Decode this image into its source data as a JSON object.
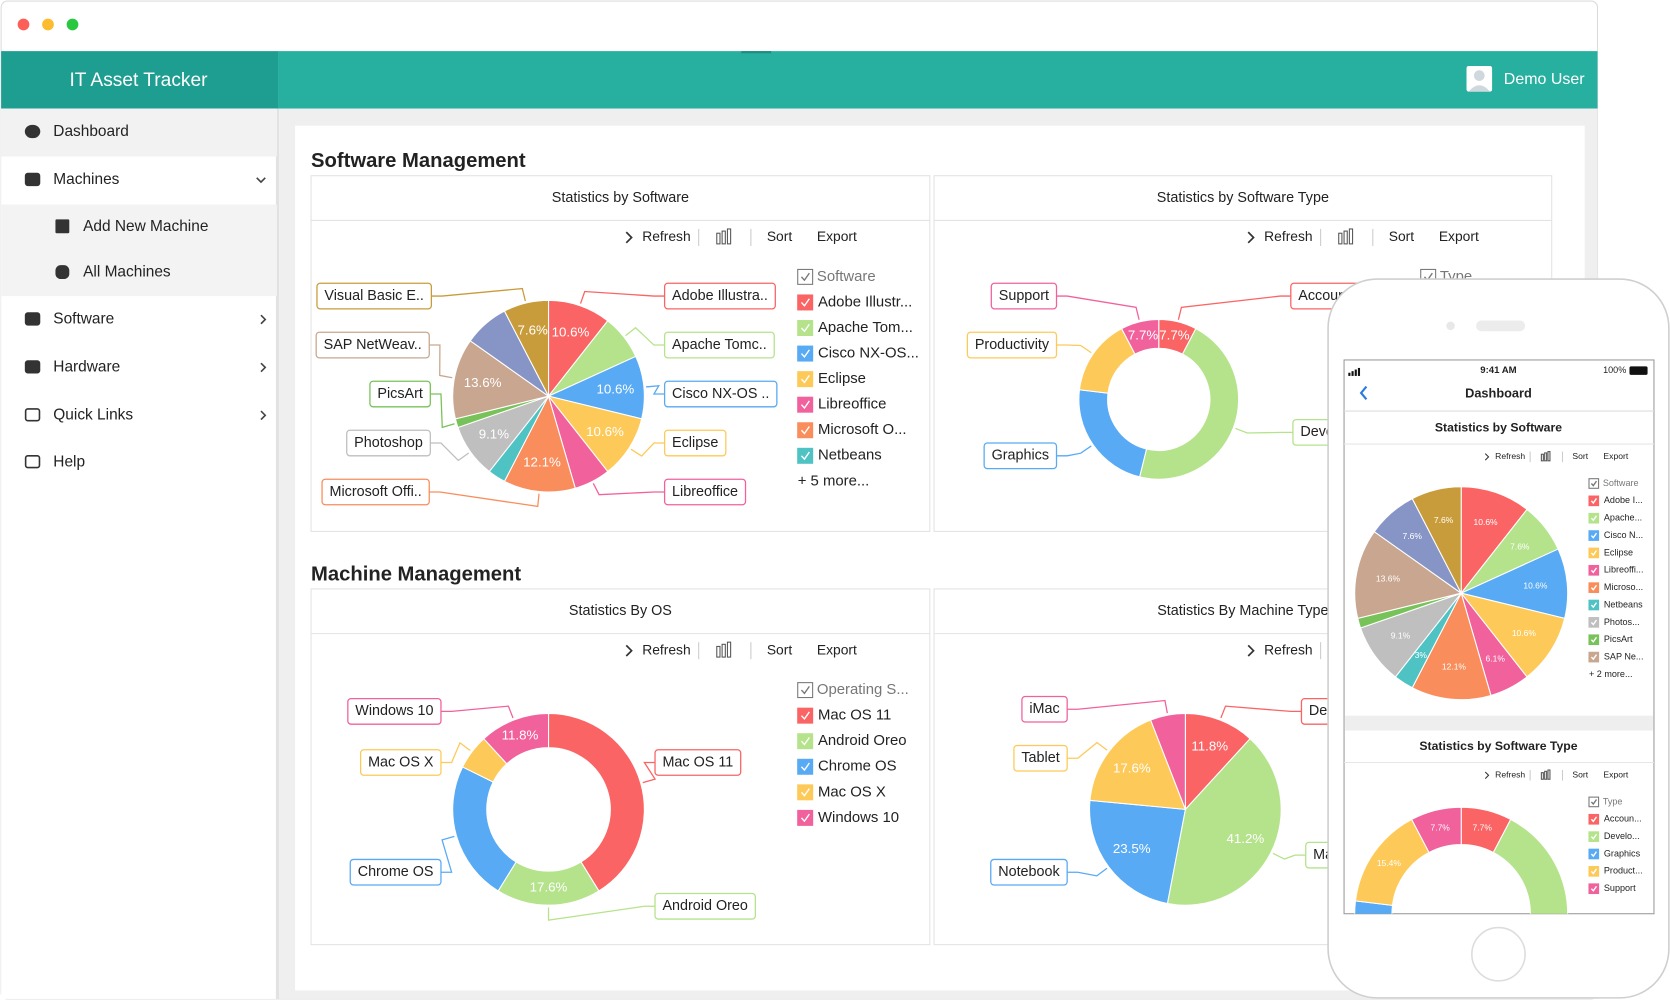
{
  "header": {
    "app_title": "IT Asset Tracker",
    "user": "Demo User"
  },
  "sidebar": {
    "items": [
      {
        "label": "Dashboard"
      },
      {
        "label": "Machines",
        "children": [
          "Add New Machine",
          "All Machines"
        ]
      },
      {
        "label": "Software"
      },
      {
        "label": "Hardware"
      },
      {
        "label": "Quick Links"
      },
      {
        "label": "Help"
      }
    ]
  },
  "toolbar": {
    "refresh": "Refresh",
    "sort": "Sort",
    "export": "Export"
  },
  "sections": [
    {
      "title": "Software Management",
      "charts": [
        {
          "title": "Statistics by Software",
          "type": "pie",
          "categories": [
            "Adobe Illustra..",
            "Apache Tomc..",
            "Cisco NX-OS ..",
            "Eclipse",
            "Libreoffice",
            "Microsoft Offi..",
            null,
            "Photoshop",
            "PicsArt",
            "SAP NetWeav..",
            null,
            "Visual Basic E.."
          ],
          "values": [
            10.6,
            7.6,
            10.6,
            10.6,
            6.1,
            12.1,
            3,
            9.1,
            1.5,
            13.6,
            7.6,
            7.6
          ],
          "value_labels": [
            "10.6%",
            null,
            "10.6%",
            "10.6%",
            null,
            "12.1%",
            null,
            "9.1%",
            null,
            "13.6%",
            null,
            "7.6%"
          ],
          "colors": [
            "#fa6464",
            "#b5e38b",
            "#58aaf4",
            "#fdca59",
            "#f1619c",
            "#f98d5b",
            "#4fc2c4",
            "#bfbfbf",
            "#78c25a",
            "#c9a68f",
            "#8795c6",
            "#c99c3b"
          ],
          "legend": {
            "title": "Software",
            "items": [
              "Adobe Illustr...",
              "Apache Tom...",
              "Cisco NX-OS...",
              "Eclipse",
              "Libreoffice",
              "Microsoft O...",
              "Netbeans"
            ],
            "more": "+ 5 more..."
          }
        },
        {
          "title": "Statistics by Software Type",
          "type": "donut",
          "categories": [
            "Accounting",
            "Development",
            "Graphics",
            "Productivity",
            "Support"
          ],
          "values": [
            7.7,
            46.2,
            23.1,
            15.4,
            7.7
          ],
          "value_labels": [
            "7.7%",
            null,
            null,
            null,
            "7.7%"
          ],
          "colors": [
            "#fa6464",
            "#b5e38b",
            "#58aaf4",
            "#fdca59",
            "#f1619c"
          ],
          "legend": {
            "title": "Type",
            "items": []
          }
        }
      ]
    },
    {
      "title": "Machine Management",
      "charts": [
        {
          "title": "Statistics By OS",
          "type": "donut",
          "categories": [
            "Mac OS 11",
            "Android Oreo",
            "Chrome OS",
            "Mac OS X",
            "Windows 10"
          ],
          "values": [
            41.2,
            17.6,
            23.5,
            5.9,
            11.8
          ],
          "value_labels": [
            null,
            "17.6%",
            null,
            null,
            "11.8%"
          ],
          "colors": [
            "#fa6464",
            "#b5e38b",
            "#58aaf4",
            "#fdca59",
            "#f1619c"
          ],
          "legend": {
            "title": "Operating S...",
            "items": [
              "Mac OS 11",
              "Android Oreo",
              "Chrome OS",
              "Mac OS X",
              "Windows 10"
            ]
          }
        },
        {
          "title": "Statistics By Machine Type",
          "type": "pie",
          "categories": [
            "Desktop",
            "MacBook",
            "Notebook",
            "Tablet",
            "iMac"
          ],
          "values": [
            11.8,
            41.2,
            23.5,
            17.6,
            5.9
          ],
          "value_labels": [
            "11.8%",
            "41.2%",
            "23.5%",
            "17.6%",
            null
          ],
          "colors": [
            "#fa6464",
            "#b5e38b",
            "#58aaf4",
            "#fdca59",
            "#f1619c"
          ]
        }
      ]
    }
  ],
  "mobile": {
    "time": "9:41 AM",
    "battery": "100%",
    "title": "Dashboard",
    "charts": [
      {
        "title": "Statistics by Software",
        "value_labels": [
          "10.6%",
          "7.6%",
          "10.6%",
          "10.6%",
          "6.1%",
          "12.1%",
          "3%",
          "9.1%",
          null,
          "13.6%",
          "7.6%",
          "7.6%"
        ],
        "legend": {
          "title": "Software",
          "items": [
            "Adobe I...",
            "Apache...",
            "Cisco N...",
            "Eclipse",
            "Libreoffi...",
            "Microso...",
            "Netbeans",
            "Photos...",
            "PicsArt",
            "SAP Ne..."
          ],
          "more": "+ 2 more..."
        }
      },
      {
        "title": "Statistics by Software Type",
        "value_labels": [
          "7.7%",
          null,
          null,
          "15.4%",
          "7.7%"
        ],
        "legend": {
          "title": "Type",
          "items": [
            "Accoun...",
            "Develo...",
            "Graphics",
            "Product...",
            "Support"
          ]
        }
      }
    ]
  }
}
